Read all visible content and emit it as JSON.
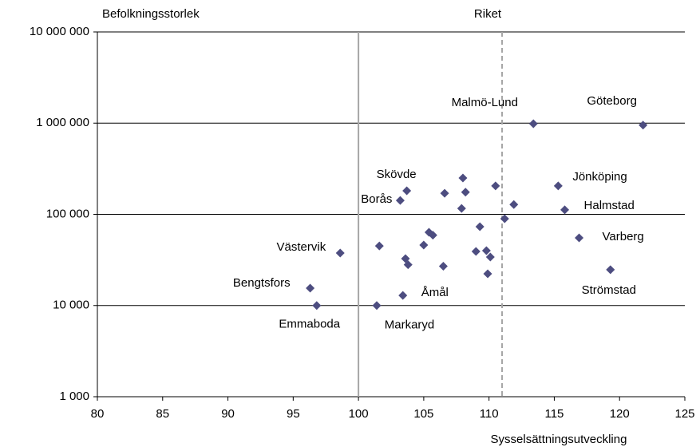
{
  "chart_data": {
    "type": "scatter",
    "y_axis_title": "Befolkningsstorlek",
    "x_axis_title": "Sysselsättningsutveckling",
    "xlim": [
      80,
      125
    ],
    "xticks": [
      80,
      85,
      90,
      95,
      100,
      105,
      110,
      115,
      120,
      125
    ],
    "ylim": [
      1000,
      10000000
    ],
    "yscale": "log",
    "yticks": [
      {
        "value": 1000,
        "label": "1 000"
      },
      {
        "value": 10000,
        "label": "10 000"
      },
      {
        "value": 100000,
        "label": "100 000"
      },
      {
        "value": 1000000,
        "label": "1 000 000"
      },
      {
        "value": 10000000,
        "label": "10 000 000"
      }
    ],
    "grid": true,
    "reference_lines": [
      {
        "value": 100,
        "color": "#a6a6a6",
        "dashed": false
      },
      {
        "value": 111,
        "color": "#a6a6a6",
        "dashed": true,
        "label": "Riket"
      }
    ],
    "series": [
      {
        "color": "#4d4d80",
        "x": [
          113.4,
          121.8,
          103.7,
          103.2,
          108.0,
          106.6,
          108.2,
          110.5,
          107.9,
          111.9,
          115.3,
          115.8,
          111.2,
          116.9,
          119.3,
          109.3,
          105.4,
          105.7,
          105.0,
          101.6,
          103.6,
          103.8,
          106.5,
          109.0,
          109.8,
          110.1,
          109.9,
          103.4,
          98.6,
          96.3,
          96.8,
          101.4
        ],
        "values": [
          985000,
          950000,
          181000,
          142000,
          250000,
          170000,
          175000,
          205000,
          116000,
          128000,
          205000,
          112000,
          89500,
          55200,
          24700,
          73100,
          63500,
          59000,
          46000,
          45000,
          32700,
          28000,
          27000,
          39200,
          40000,
          34000,
          22300,
          12900,
          37600,
          15500,
          10000,
          10000
        ],
        "labels": [
          "Malmö-Lund",
          "Göteborg",
          "Skövde",
          "Borås",
          null,
          null,
          null,
          null,
          null,
          null,
          "Jönköping",
          "Halmstad",
          null,
          "Varberg",
          "Strömstad",
          null,
          null,
          null,
          null,
          null,
          null,
          null,
          null,
          null,
          null,
          null,
          null,
          "Åmål",
          "Västervik",
          "Bengtsfors",
          "Emmaboda",
          "Markaryd"
        ]
      }
    ]
  }
}
